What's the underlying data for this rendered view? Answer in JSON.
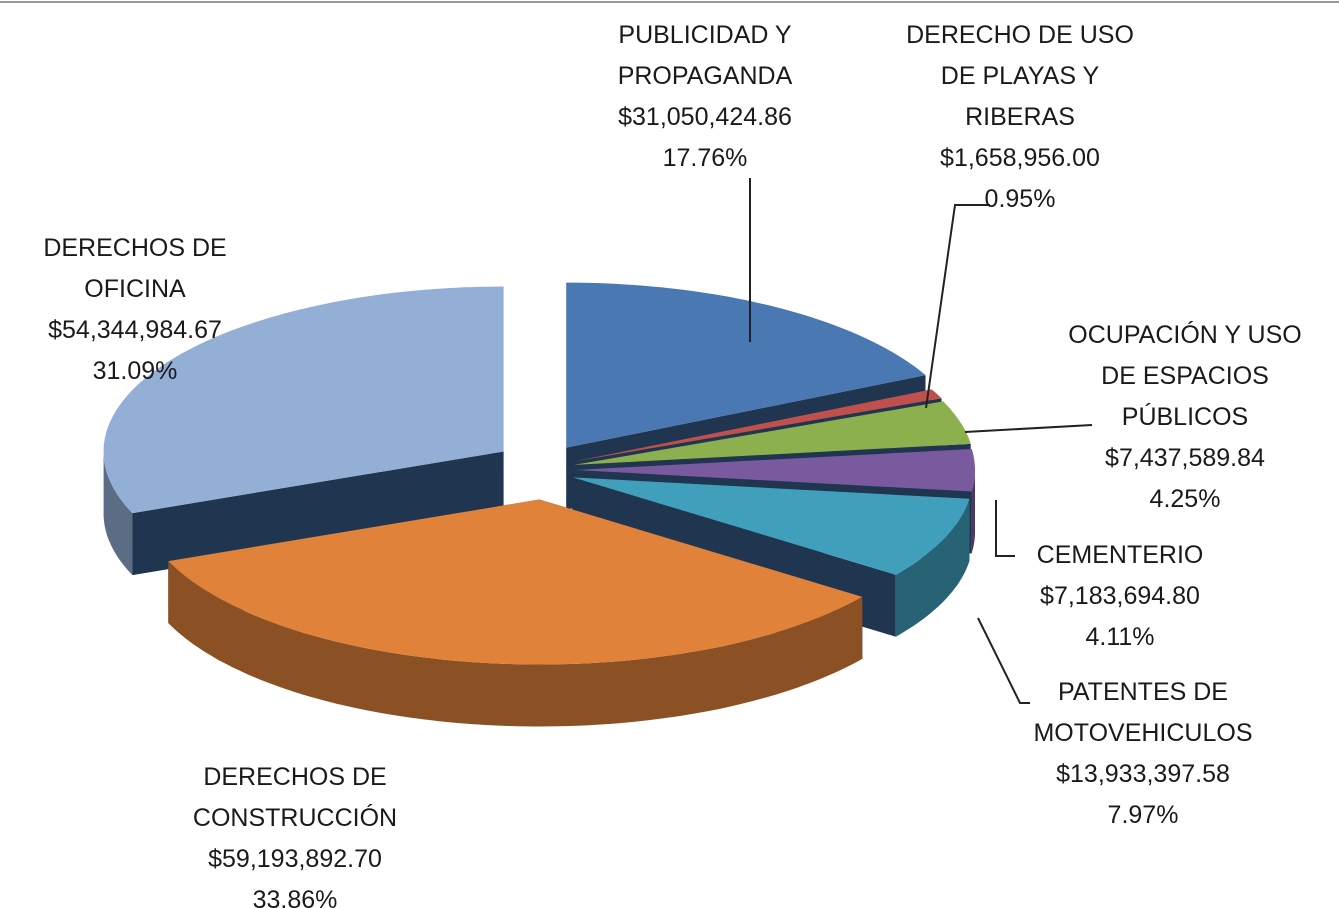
{
  "chart_data": {
    "type": "pie3d",
    "categories": [
      "PUBLICIDAD Y\nPROPAGANDA",
      "DERECHO DE USO\nDE PLAYAS Y\nRIBERAS",
      "OCUPACIÓN Y USO\nDE ESPACIOS\nPÚBLICOS",
      "CEMENTERIO",
      "PATENTES DE\nMOTOVEHICULOS",
      "DERECHOS DE\nCONSTRUCCIÓN",
      "DERECHOS DE\nOFICINA"
    ],
    "values": [
      31050424.86,
      1658956.0,
      7437589.84,
      7183694.8,
      13933397.58,
      59193892.7,
      54344984.67
    ],
    "value_labels": [
      "$31,050,424.86",
      "$1,658,956.00",
      "$7,437,589.84",
      "$7,183,694.80",
      "$13,933,397.58",
      "$59,193,892.70",
      "$54,344,984.67"
    ],
    "percents": [
      17.76,
      0.95,
      4.25,
      4.11,
      7.97,
      33.86,
      31.09
    ],
    "percent_labels": [
      "17.76%",
      "0.95%",
      "4.25%",
      "4.11%",
      "7.97%",
      "33.86%",
      "31.09%"
    ],
    "colors": [
      "#4a78b2",
      "#c0504d",
      "#8db04f",
      "#7a5a9e",
      "#40a0bc",
      "#e0823a",
      "#93afd6"
    ]
  }
}
